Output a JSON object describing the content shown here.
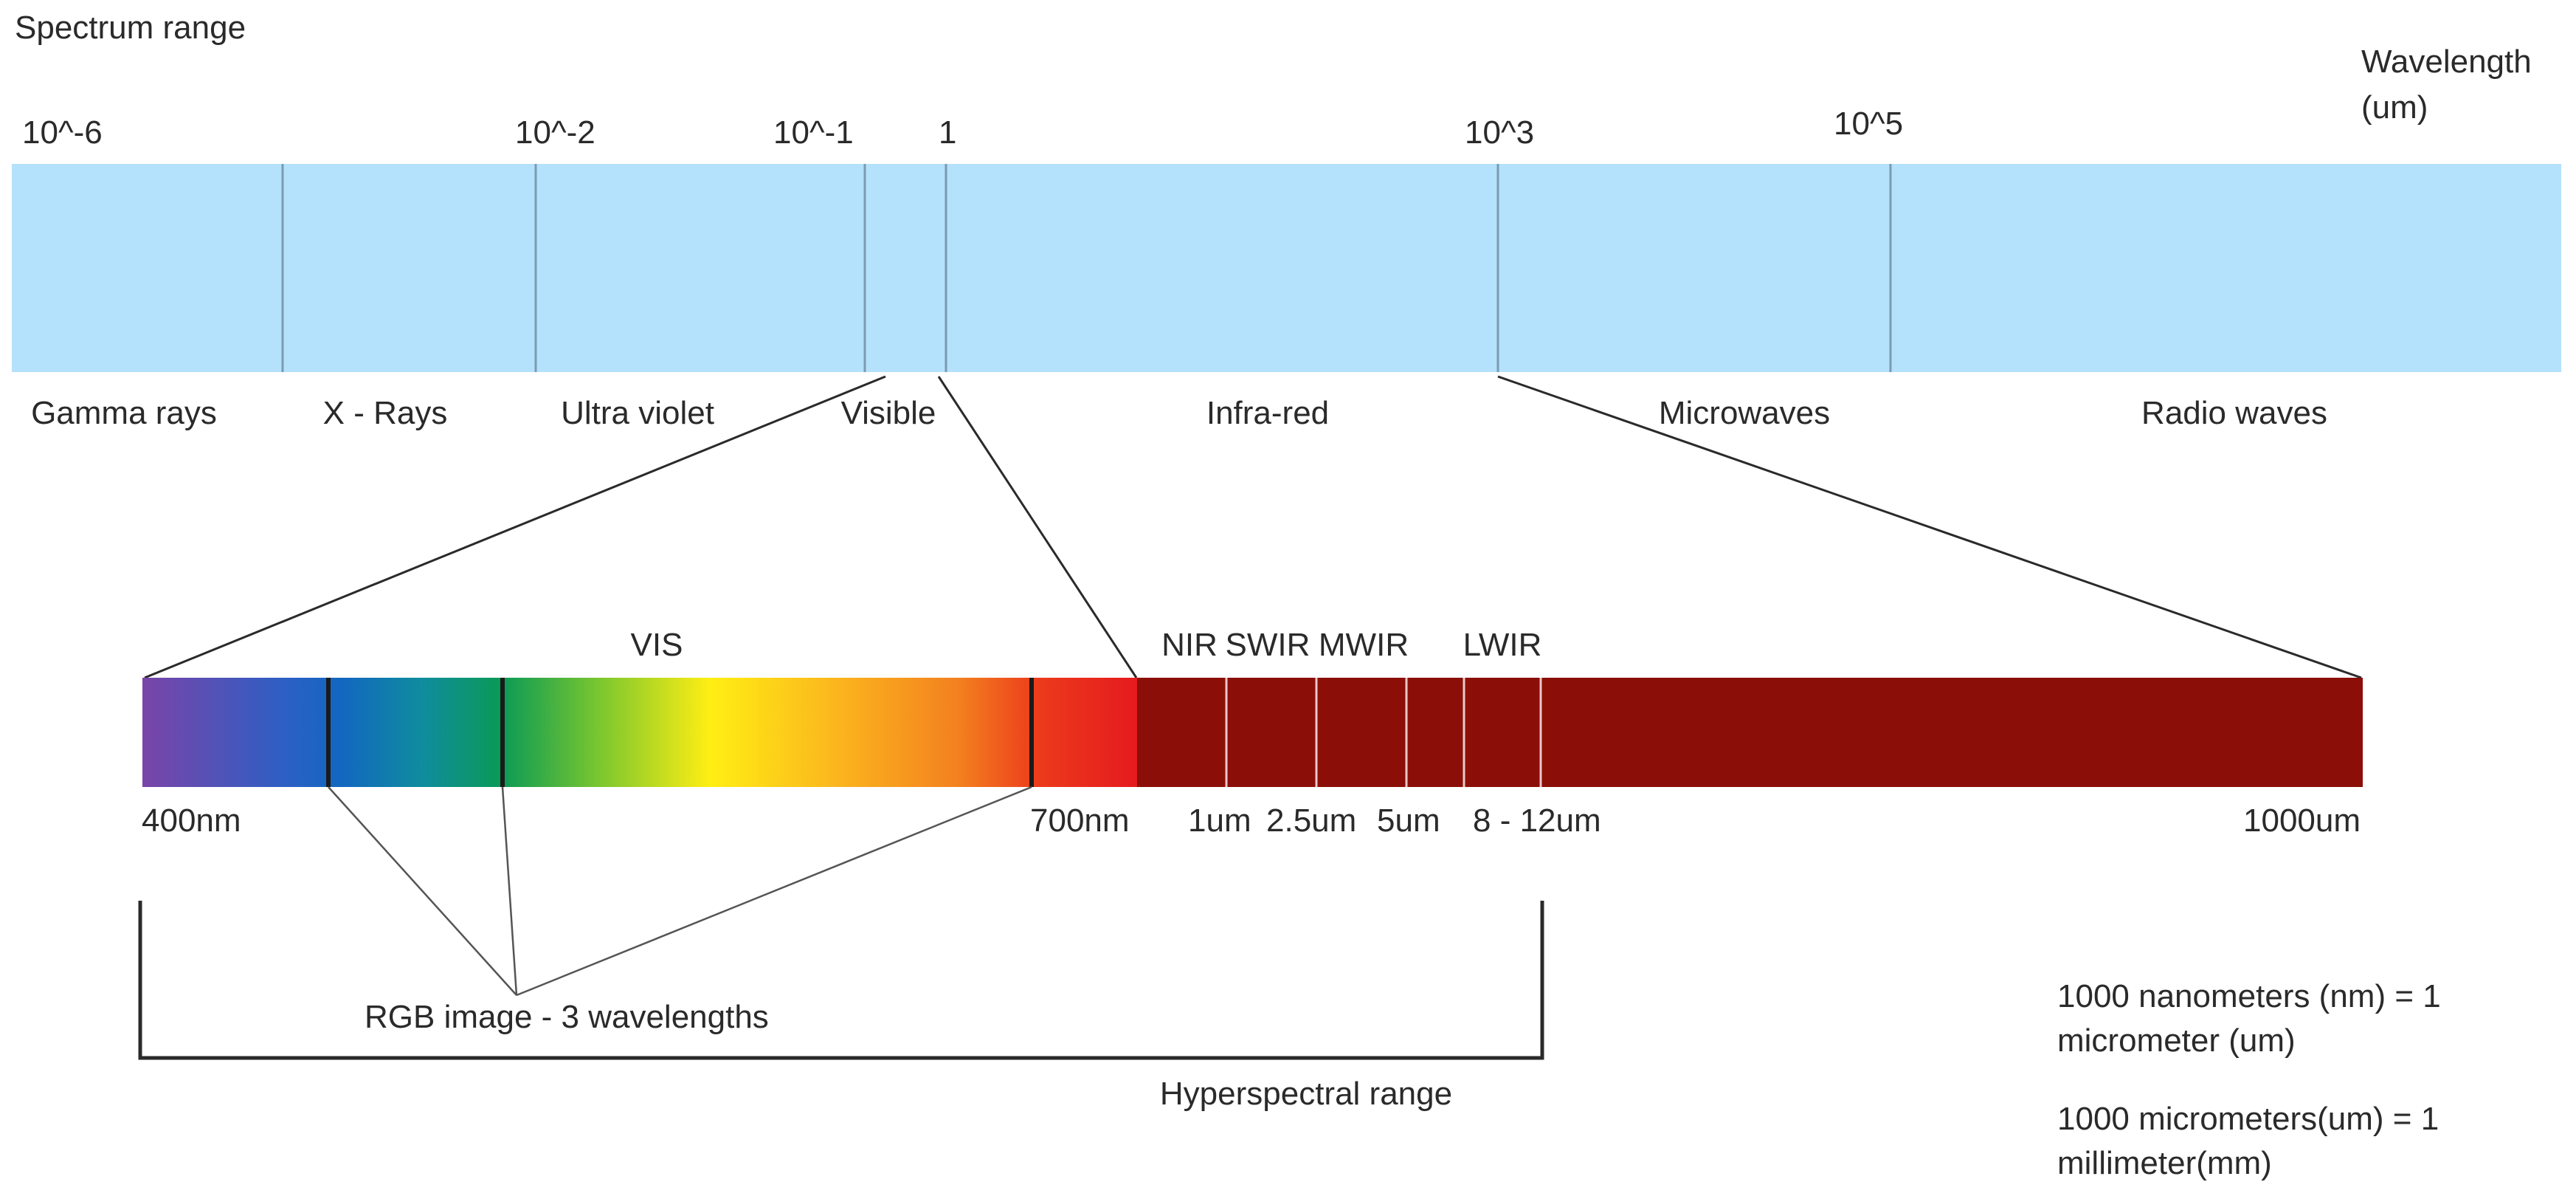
{
  "title": "Spectrum range",
  "axis_label": [
    "Wavelength",
    "(um)"
  ],
  "colors": {
    "spectrum_bar": "#b4e1fb",
    "divider": "#7a9bb0",
    "infrared_bar": "#8b0e08",
    "line": "#2a2a2a"
  },
  "scale_ticks": [
    "10^-6",
    "10^-2",
    "10^-1",
    "1",
    "10^3",
    "10^5"
  ],
  "bands": [
    "Gamma rays",
    "X - Rays",
    "Ultra violet",
    "Visible",
    "Infra-red",
    "Microwaves",
    "Radio waves"
  ],
  "detail": {
    "vis_label": "VIS",
    "ir_labels": [
      "NIR",
      "SWIR",
      "MWIR",
      "LWIR"
    ],
    "wavelength_labels": [
      "400nm",
      "700nm",
      "1um",
      "2.5um",
      "5um",
      "8 - 12um",
      "1000um"
    ]
  },
  "rgb_label": "RGB image - 3 wavelengths",
  "hyperspectral_label": "Hyperspectral range",
  "notes": [
    [
      "1000 nanometers (nm) = 1",
      "micrometer (um)"
    ],
    [
      "1000 micrometers(um) = 1",
      "millimeter(mm)"
    ]
  ]
}
